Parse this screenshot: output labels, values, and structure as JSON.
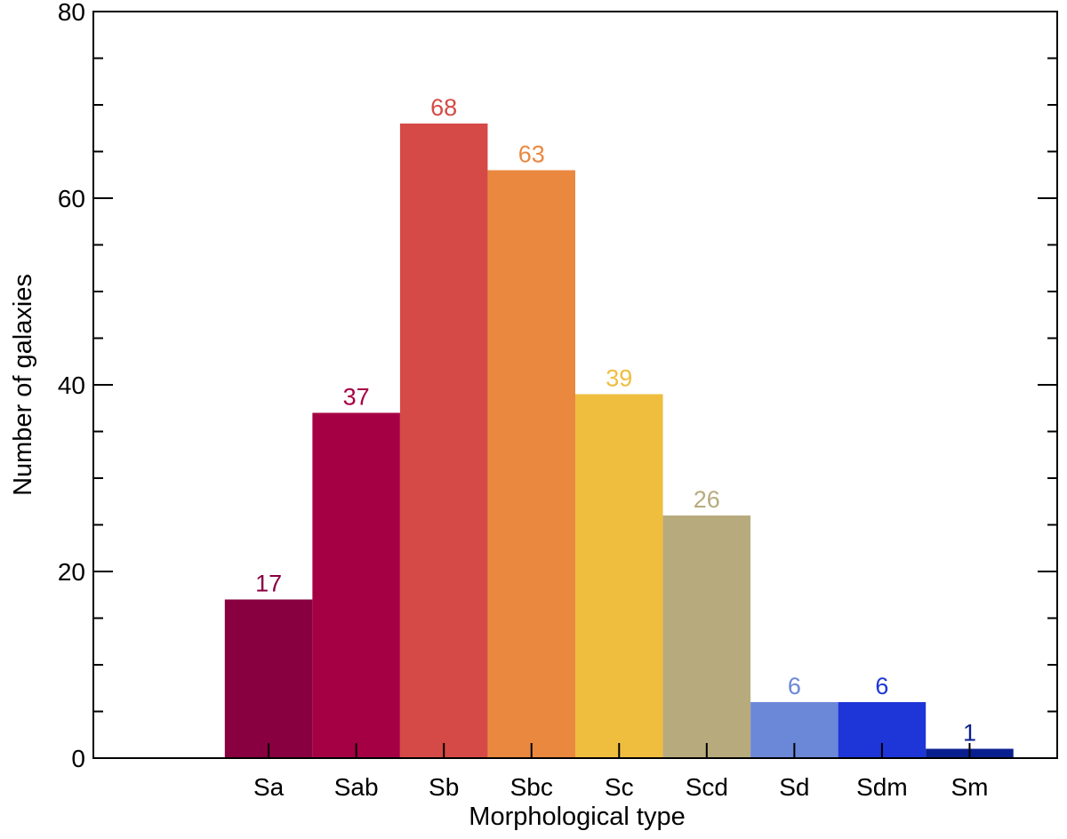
{
  "chart_data": {
    "type": "bar",
    "title": "",
    "xlabel": "Morphological type",
    "ylabel": "Number of galaxies",
    "ylim": [
      0,
      80
    ],
    "yticks": [
      0,
      20,
      40,
      60,
      80
    ],
    "yminor_step": 5,
    "xlim": [
      -2,
      9
    ],
    "grid": false,
    "categories": [
      "Sa",
      "Sab",
      "Sb",
      "Sbc",
      "Sc",
      "Scd",
      "Sd",
      "Sdm",
      "Sm"
    ],
    "values": [
      17,
      37,
      68,
      63,
      39,
      26,
      6,
      6,
      1
    ],
    "colors": [
      "#880040",
      "#a60044",
      "#d54a46",
      "#ea8840",
      "#efbe3e",
      "#b7ab7e",
      "#6b87d8",
      "#1e35d8",
      "#0a1f8f"
    ],
    "data_labels": [
      "17",
      "37",
      "68",
      "63",
      "39",
      "26",
      "6",
      "6",
      "1"
    ]
  }
}
